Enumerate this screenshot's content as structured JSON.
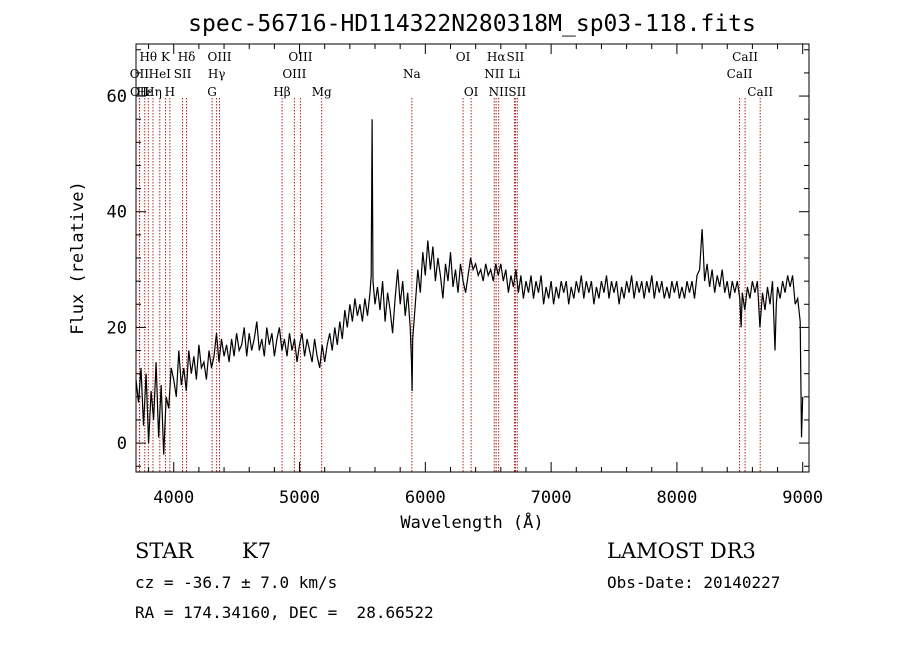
{
  "chart_data": {
    "type": "line",
    "title": "spec-56716-HD114322N280318M_sp03-118.fits",
    "xlabel": "Wavelength (Å)",
    "ylabel": "Flux (relative)",
    "xlim": [
      3700,
      9050
    ],
    "ylim": [
      -5,
      69
    ],
    "xticks": [
      4000,
      5000,
      6000,
      7000,
      8000,
      9000
    ],
    "yticks": [
      0,
      20,
      40,
      60
    ],
    "grid": false,
    "line_color": "#000000",
    "marker_color": "#b22222",
    "series": [
      {
        "points": [
          [
            3700,
            11
          ],
          [
            3720,
            7
          ],
          [
            3740,
            13
          ],
          [
            3760,
            3
          ],
          [
            3780,
            12
          ],
          [
            3800,
            0
          ],
          [
            3820,
            9
          ],
          [
            3840,
            4
          ],
          [
            3860,
            14
          ],
          [
            3880,
            1
          ],
          [
            3900,
            10
          ],
          [
            3920,
            -2
          ],
          [
            3940,
            8
          ],
          [
            3960,
            6
          ],
          [
            3980,
            13
          ],
          [
            4000,
            11
          ],
          [
            4020,
            8
          ],
          [
            4040,
            16
          ],
          [
            4060,
            10
          ],
          [
            4080,
            13
          ],
          [
            4100,
            9
          ],
          [
            4120,
            16
          ],
          [
            4140,
            12
          ],
          [
            4160,
            15
          ],
          [
            4180,
            11
          ],
          [
            4200,
            17
          ],
          [
            4220,
            13
          ],
          [
            4240,
            14
          ],
          [
            4260,
            11
          ],
          [
            4280,
            16
          ],
          [
            4300,
            13
          ],
          [
            4320,
            15
          ],
          [
            4340,
            19
          ],
          [
            4360,
            14
          ],
          [
            4380,
            18
          ],
          [
            4400,
            15
          ],
          [
            4420,
            17
          ],
          [
            4440,
            14
          ],
          [
            4460,
            18
          ],
          [
            4480,
            15
          ],
          [
            4500,
            19
          ],
          [
            4520,
            16
          ],
          [
            4540,
            17
          ],
          [
            4560,
            20
          ],
          [
            4580,
            15
          ],
          [
            4600,
            19
          ],
          [
            4620,
            16
          ],
          [
            4640,
            18
          ],
          [
            4660,
            21
          ],
          [
            4680,
            16
          ],
          [
            4700,
            18
          ],
          [
            4720,
            15
          ],
          [
            4740,
            20
          ],
          [
            4760,
            17
          ],
          [
            4780,
            19
          ],
          [
            4800,
            15
          ],
          [
            4820,
            18
          ],
          [
            4840,
            20
          ],
          [
            4860,
            16
          ],
          [
            4880,
            18
          ],
          [
            4900,
            15
          ],
          [
            4920,
            19
          ],
          [
            4940,
            16
          ],
          [
            4960,
            18
          ],
          [
            4980,
            14
          ],
          [
            5000,
            17
          ],
          [
            5020,
            19
          ],
          [
            5040,
            15
          ],
          [
            5060,
            18
          ],
          [
            5080,
            16
          ],
          [
            5100,
            14
          ],
          [
            5120,
            18
          ],
          [
            5140,
            15
          ],
          [
            5160,
            13
          ],
          [
            5180,
            17
          ],
          [
            5200,
            14
          ],
          [
            5220,
            17
          ],
          [
            5240,
            19
          ],
          [
            5260,
            16
          ],
          [
            5280,
            20
          ],
          [
            5300,
            17
          ],
          [
            5320,
            21
          ],
          [
            5340,
            18
          ],
          [
            5360,
            23
          ],
          [
            5380,
            20
          ],
          [
            5400,
            24
          ],
          [
            5420,
            21
          ],
          [
            5440,
            25
          ],
          [
            5460,
            22
          ],
          [
            5480,
            24
          ],
          [
            5500,
            21
          ],
          [
            5520,
            25
          ],
          [
            5540,
            22
          ],
          [
            5560,
            26
          ],
          [
            5570,
            29
          ],
          [
            5577,
            56
          ],
          [
            5584,
            28
          ],
          [
            5600,
            24
          ],
          [
            5620,
            27
          ],
          [
            5640,
            23
          ],
          [
            5660,
            28
          ],
          [
            5680,
            21
          ],
          [
            5700,
            26
          ],
          [
            5720,
            23
          ],
          [
            5740,
            19
          ],
          [
            5760,
            25
          ],
          [
            5780,
            30
          ],
          [
            5800,
            24
          ],
          [
            5820,
            28
          ],
          [
            5840,
            22
          ],
          [
            5860,
            26
          ],
          [
            5880,
            20
          ],
          [
            5890,
            14
          ],
          [
            5895,
            9
          ],
          [
            5900,
            18
          ],
          [
            5920,
            24
          ],
          [
            5940,
            30
          ],
          [
            5960,
            26
          ],
          [
            5980,
            33
          ],
          [
            6000,
            29
          ],
          [
            6020,
            35
          ],
          [
            6040,
            30
          ],
          [
            6060,
            34
          ],
          [
            6080,
            28
          ],
          [
            6100,
            32
          ],
          [
            6120,
            29
          ],
          [
            6140,
            25
          ],
          [
            6160,
            31
          ],
          [
            6180,
            28
          ],
          [
            6200,
            33
          ],
          [
            6220,
            27
          ],
          [
            6240,
            30
          ],
          [
            6260,
            26
          ],
          [
            6280,
            31
          ],
          [
            6300,
            28
          ],
          [
            6320,
            26
          ],
          [
            6340,
            29
          ],
          [
            6360,
            32
          ],
          [
            6380,
            30
          ],
          [
            6400,
            31
          ],
          [
            6420,
            29
          ],
          [
            6440,
            30
          ],
          [
            6460,
            28
          ],
          [
            6480,
            31
          ],
          [
            6500,
            29
          ],
          [
            6520,
            30
          ],
          [
            6540,
            28
          ],
          [
            6560,
            31
          ],
          [
            6580,
            29
          ],
          [
            6600,
            31
          ],
          [
            6620,
            28
          ],
          [
            6640,
            30
          ],
          [
            6660,
            26
          ],
          [
            6680,
            29
          ],
          [
            6700,
            27
          ],
          [
            6720,
            30
          ],
          [
            6740,
            26
          ],
          [
            6760,
            29
          ],
          [
            6780,
            25
          ],
          [
            6800,
            28
          ],
          [
            6820,
            26
          ],
          [
            6840,
            29
          ],
          [
            6860,
            25
          ],
          [
            6880,
            28
          ],
          [
            6900,
            26
          ],
          [
            6920,
            29
          ],
          [
            6940,
            24
          ],
          [
            6960,
            27
          ],
          [
            6980,
            25
          ],
          [
            7000,
            28
          ],
          [
            7020,
            24
          ],
          [
            7040,
            27
          ],
          [
            7060,
            25
          ],
          [
            7080,
            28
          ],
          [
            7100,
            26
          ],
          [
            7120,
            28
          ],
          [
            7140,
            24
          ],
          [
            7160,
            27
          ],
          [
            7180,
            25
          ],
          [
            7200,
            28
          ],
          [
            7220,
            26
          ],
          [
            7240,
            29
          ],
          [
            7260,
            25
          ],
          [
            7280,
            28
          ],
          [
            7300,
            26
          ],
          [
            7320,
            28
          ],
          [
            7340,
            24
          ],
          [
            7360,
            27
          ],
          [
            7380,
            25
          ],
          [
            7400,
            28
          ],
          [
            7420,
            26
          ],
          [
            7440,
            29
          ],
          [
            7460,
            25
          ],
          [
            7480,
            28
          ],
          [
            7500,
            26
          ],
          [
            7520,
            28
          ],
          [
            7540,
            24
          ],
          [
            7560,
            27
          ],
          [
            7580,
            25
          ],
          [
            7600,
            28
          ],
          [
            7620,
            26
          ],
          [
            7640,
            29
          ],
          [
            7660,
            25
          ],
          [
            7680,
            28
          ],
          [
            7700,
            26
          ],
          [
            7720,
            28
          ],
          [
            7740,
            25
          ],
          [
            7760,
            28
          ],
          [
            7780,
            26
          ],
          [
            7800,
            29
          ],
          [
            7820,
            25
          ],
          [
            7840,
            28
          ],
          [
            7860,
            26
          ],
          [
            7880,
            28
          ],
          [
            7900,
            25
          ],
          [
            7920,
            27
          ],
          [
            7940,
            25
          ],
          [
            7960,
            28
          ],
          [
            7980,
            26
          ],
          [
            8000,
            28
          ],
          [
            8020,
            25
          ],
          [
            8040,
            27
          ],
          [
            8060,
            25
          ],
          [
            8080,
            28
          ],
          [
            8100,
            26
          ],
          [
            8120,
            28
          ],
          [
            8140,
            25
          ],
          [
            8160,
            29
          ],
          [
            8180,
            30
          ],
          [
            8200,
            37
          ],
          [
            8210,
            33
          ],
          [
            8220,
            28
          ],
          [
            8240,
            31
          ],
          [
            8260,
            27
          ],
          [
            8280,
            30
          ],
          [
            8300,
            26
          ],
          [
            8320,
            29
          ],
          [
            8340,
            27
          ],
          [
            8360,
            30
          ],
          [
            8380,
            26
          ],
          [
            8400,
            28
          ],
          [
            8420,
            25
          ],
          [
            8440,
            28
          ],
          [
            8460,
            26
          ],
          [
            8480,
            28
          ],
          [
            8500,
            25
          ],
          [
            8510,
            20
          ],
          [
            8520,
            26
          ],
          [
            8540,
            23
          ],
          [
            8560,
            27
          ],
          [
            8580,
            25
          ],
          [
            8600,
            28
          ],
          [
            8620,
            26
          ],
          [
            8640,
            28
          ],
          [
            8660,
            20
          ],
          [
            8680,
            26
          ],
          [
            8700,
            23
          ],
          [
            8720,
            27
          ],
          [
            8740,
            24
          ],
          [
            8760,
            28
          ],
          [
            8780,
            16
          ],
          [
            8790,
            24
          ],
          [
            8800,
            27
          ],
          [
            8820,
            25
          ],
          [
            8840,
            28
          ],
          [
            8860,
            26
          ],
          [
            8880,
            29
          ],
          [
            8900,
            27
          ],
          [
            8920,
            29
          ],
          [
            8940,
            24
          ],
          [
            8960,
            25
          ],
          [
            8980,
            21
          ],
          [
            8990,
            1
          ],
          [
            9000,
            8
          ]
        ]
      }
    ],
    "annotations": [
      {
        "label": "Hθ",
        "x": 3798,
        "row": 1
      },
      {
        "label": "OII",
        "x": 3727,
        "row": 2
      },
      {
        "label": "OII",
        "x": 3729,
        "row": 3
      },
      {
        "label": "Hε",
        "x": 3770,
        "row": 3
      },
      {
        "label": "K",
        "x": 3934,
        "row": 1
      },
      {
        "label": "HeI",
        "x": 3889,
        "row": 2
      },
      {
        "label": "Hη",
        "x": 3835,
        "row": 3
      },
      {
        "label": "H",
        "x": 3969,
        "row": 3
      },
      {
        "label": "Hδ",
        "x": 4102,
        "row": 1
      },
      {
        "label": "SII",
        "x": 4070,
        "row": 2
      },
      {
        "label": "OIII",
        "x": 4364,
        "row": 1
      },
      {
        "label": "Hγ",
        "x": 4341,
        "row": 2
      },
      {
        "label": "G",
        "x": 4305,
        "row": 3
      },
      {
        "label": "OIII",
        "x": 5007,
        "row": 1
      },
      {
        "label": "OIII",
        "x": 4959,
        "row": 2
      },
      {
        "label": "Hβ",
        "x": 4861,
        "row": 3
      },
      {
        "label": "Mg",
        "x": 5176,
        "row": 3
      },
      {
        "label": "Na",
        "x": 5893,
        "row": 2
      },
      {
        "label": "OI",
        "x": 6300,
        "row": 1
      },
      {
        "label": "OI",
        "x": 6364,
        "row": 3
      },
      {
        "label": "Hα",
        "x": 6563,
        "row": 1
      },
      {
        "label": "SII",
        "x": 6716,
        "row": 1
      },
      {
        "label": "NII",
        "x": 6548,
        "row": 2
      },
      {
        "label": "Li",
        "x": 6708,
        "row": 2
      },
      {
        "label": "NII",
        "x": 6583,
        "row": 3
      },
      {
        "label": "SII",
        "x": 6731,
        "row": 3
      },
      {
        "label": "CaII",
        "x": 8542,
        "row": 1
      },
      {
        "label": "CaII",
        "x": 8498,
        "row": 2
      },
      {
        "label": "CaII",
        "x": 8662,
        "row": 3
      }
    ]
  },
  "info": {
    "object_class": "STAR",
    "subclass": "K7",
    "survey": "LAMOST DR3",
    "redshift": "cz = -36.7 ± 7.0 km/s",
    "obs_date": "Obs-Date: 20140227",
    "coords": "RA = 174.34160, DEC =  28.66522"
  }
}
